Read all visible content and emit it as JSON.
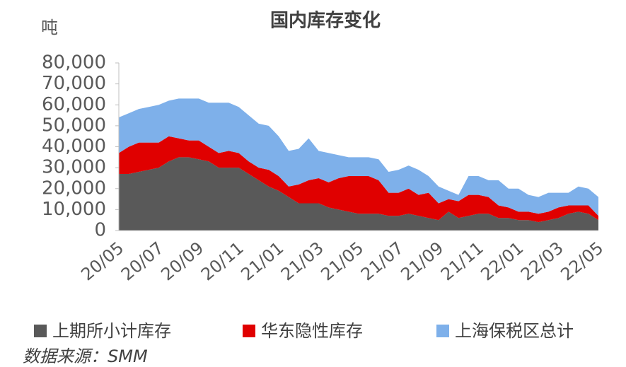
{
  "chart_data": {
    "type": "stacked_area",
    "title": "国内库存变化",
    "y_axis_label": "吨",
    "source": "数据来源：SMM",
    "categories": [
      "20/05",
      null,
      null,
      null,
      "20/07",
      null,
      null,
      null,
      "20/09",
      null,
      null,
      null,
      "20/11",
      null,
      null,
      null,
      "21/01",
      null,
      null,
      null,
      "21/03",
      null,
      null,
      null,
      "21/05",
      null,
      null,
      null,
      "21/07",
      null,
      null,
      null,
      "21/09",
      null,
      null,
      null,
      "21/11",
      null,
      null,
      null,
      "22/01",
      null,
      null,
      null,
      "22/03",
      null,
      null,
      null,
      "22/05"
    ],
    "series": [
      {
        "name": "上期所小计库存",
        "color": "#595959",
        "values": [
          27000,
          27000,
          28000,
          29000,
          30000,
          33000,
          35000,
          35000,
          34000,
          33000,
          30000,
          30000,
          30000,
          27000,
          24000,
          21000,
          19000,
          16000,
          13000,
          13000,
          13000,
          11000,
          10000,
          9000,
          8000,
          8000,
          8000,
          7000,
          7000,
          8000,
          7000,
          6000,
          5000,
          9000,
          6000,
          7000,
          8000,
          8000,
          6000,
          6000,
          5000,
          5000,
          4000,
          5000,
          6000,
          8000,
          9000,
          8000,
          5000
        ]
      },
      {
        "name": "华东隐性库存",
        "color": "#e00000",
        "values": [
          10000,
          13000,
          14000,
          13000,
          12000,
          12000,
          9000,
          8000,
          9000,
          7000,
          7000,
          8000,
          7000,
          6000,
          6000,
          8000,
          7000,
          5000,
          9000,
          11000,
          12000,
          12000,
          15000,
          17000,
          18000,
          18000,
          16000,
          11000,
          11000,
          12000,
          10000,
          12000,
          8000,
          6000,
          8000,
          10000,
          9000,
          8000,
          6000,
          5000,
          4000,
          4000,
          4000,
          4000,
          5000,
          4000,
          3000,
          4000,
          2000
        ]
      },
      {
        "name": "上海保税区总计",
        "color": "#7eb0ea",
        "values": [
          17000,
          16000,
          16000,
          17000,
          18000,
          17000,
          19000,
          20000,
          20000,
          21000,
          24000,
          23000,
          22000,
          22000,
          21000,
          21000,
          19000,
          17000,
          17000,
          20000,
          13000,
          14000,
          11000,
          9000,
          9000,
          9000,
          10000,
          10000,
          11000,
          11000,
          12000,
          8000,
          8000,
          4000,
          3000,
          9000,
          9000,
          8000,
          12000,
          9000,
          11000,
          8000,
          8000,
          9000,
          7000,
          6000,
          9000,
          8000,
          9000
        ]
      }
    ],
    "ylim": [
      0,
      80000
    ],
    "yticks": [
      0,
      {
        "value": 10000,
        "label": "10,000"
      },
      {
        "value": 20000,
        "label": "20,000"
      },
      {
        "value": 30000,
        "label": "30,000"
      },
      {
        "value": 40000,
        "label": "40,000"
      },
      {
        "value": 50000,
        "label": "50,000"
      },
      {
        "value": 60000,
        "label": "60,000"
      },
      {
        "value": 70000,
        "label": "70,000"
      },
      {
        "value": 80000,
        "label": "80,000"
      }
    ],
    "legend": "bottom"
  }
}
